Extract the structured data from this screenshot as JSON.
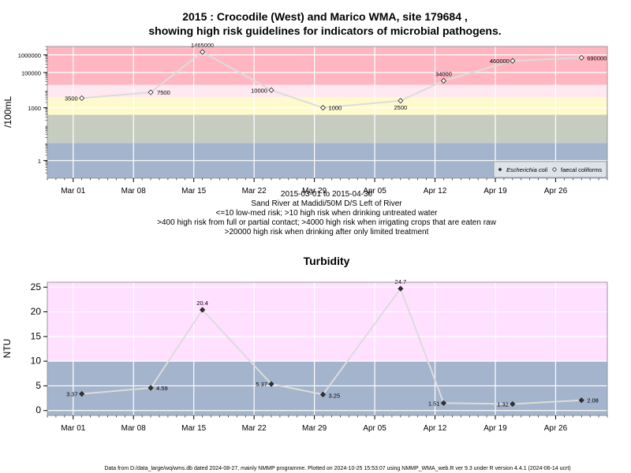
{
  "header": {
    "title_line1": "2015 : Crocodile (West) and Marico WMA, site 179684 ,",
    "title_line2": "showing high risk guidelines for indicators of microbial pathogens."
  },
  "microbial": {
    "ylabel": "/100mL",
    "y_ticks": [
      {
        "label": "1000000",
        "value": 1000000
      },
      {
        "label": "100000",
        "value": 100000
      },
      {
        "label": "1000",
        "value": 1000
      },
      {
        "label": "1",
        "value": 1
      }
    ],
    "x_ticks": [
      {
        "label": "Mar 01",
        "date": "2015-03-01"
      },
      {
        "label": "Mar 08",
        "date": "2015-03-08"
      },
      {
        "label": "Mar 15",
        "date": "2015-03-15"
      },
      {
        "label": "Mar 22",
        "date": "2015-03-22"
      },
      {
        "label": "Mar 29",
        "date": "2015-03-29"
      },
      {
        "label": "Apr 05",
        "date": "2015-04-05"
      },
      {
        "label": "Apr 12",
        "date": "2015-04-12"
      },
      {
        "label": "Apr 19",
        "date": "2015-04-19"
      },
      {
        "label": "Apr 26",
        "date": "2015-04-26"
      }
    ],
    "legend": {
      "ecoli": "Escherichia coli",
      "fc": "faecal coliforms"
    },
    "caption": [
      "2015-03-01 to 2015-04-30",
      "Sand River at Madidi/50M D/S Left of River",
      "<=10 low-med risk; >10 high risk when drinking untreated water",
      ">400 high risk from full or partial contact; >4000 high risk when irrigating crops that are eaten raw",
      ">20000 high risk when drinking after only limited treatment"
    ]
  },
  "turbidity": {
    "title": "Turbidity",
    "ylabel": "NTU",
    "y_ticks": [
      {
        "label": "0",
        "value": 0
      },
      {
        "label": "5",
        "value": 5
      },
      {
        "label": "10",
        "value": 10
      },
      {
        "label": "15",
        "value": 15
      },
      {
        "label": "20",
        "value": 20
      },
      {
        "label": "25",
        "value": 25
      }
    ],
    "x_ticks": [
      {
        "label": "Mar 01",
        "date": "2015-03-01"
      },
      {
        "label": "Mar 08",
        "date": "2015-03-08"
      },
      {
        "label": "Mar 15",
        "date": "2015-03-15"
      },
      {
        "label": "Mar 22",
        "date": "2015-03-22"
      },
      {
        "label": "Mar 29",
        "date": "2015-03-29"
      },
      {
        "label": "Apr 05",
        "date": "2015-04-05"
      },
      {
        "label": "Apr 12",
        "date": "2015-04-12"
      },
      {
        "label": "Apr 19",
        "date": "2015-04-19"
      },
      {
        "label": "Apr 26",
        "date": "2015-04-26"
      }
    ]
  },
  "footer": {
    "text": "Data from D:/data_large/wq/wms.db dated 2024-08-27, mainly NMMP programme. Plotted on 2024-10-25 15:53:07 using NMMP_WMA_web.R ver 9.3 under R version 4.4.1 (2024-06-14 ucrt)"
  },
  "colors": {
    "band_red": "#ffb6c1",
    "band_lightpink": "#ffe8f0",
    "band_pink": "#ffe0ff",
    "band_yellow": "#fffacd",
    "band_grey": "#c6cdc0",
    "band_blue": "#a4b4cc",
    "line": "#dcdcdc",
    "grid": "#ffffff"
  },
  "chart_data": [
    {
      "type": "scatter",
      "title": "2015 : Crocodile (West) and Marico WMA, site 179684 , showing high risk guidelines for indicators of microbial pathogens.",
      "ylabel": "/100mL",
      "y_scale": "log",
      "xlim": [
        "2015-02-26",
        "2015-05-02"
      ],
      "ylim": [
        0.1,
        3000000
      ],
      "legend_position": "bottom-right",
      "guidelines": [
        10,
        400,
        4000,
        20000
      ],
      "series": [
        {
          "name": "faecal coliforms",
          "points": [
            {
              "x": "2015-03-02",
              "y": 3500,
              "label": "3500"
            },
            {
              "x": "2015-03-10",
              "y": 7500,
              "label": "7500"
            },
            {
              "x": "2015-03-16",
              "y": 1465000,
              "label": "1465000"
            },
            {
              "x": "2015-03-24",
              "y": 10000,
              "label": "10000"
            },
            {
              "x": "2015-03-30",
              "y": 1000,
              "label": "1000"
            },
            {
              "x": "2015-04-08",
              "y": 2500,
              "label": "2500"
            },
            {
              "x": "2015-04-13",
              "y": 34000,
              "label": "34000"
            },
            {
              "x": "2015-04-21",
              "y": 460000,
              "label": "460000"
            },
            {
              "x": "2015-04-29",
              "y": 690000,
              "label": "690000"
            }
          ]
        }
      ]
    },
    {
      "type": "line",
      "title": "Turbidity",
      "ylabel": "NTU",
      "xlim": [
        "2015-02-26",
        "2015-05-02"
      ],
      "ylim": [
        -1,
        26
      ],
      "guidelines": [
        10
      ],
      "series": [
        {
          "points": [
            {
              "x": "2015-03-02",
              "y": 3.37,
              "label": "3.37"
            },
            {
              "x": "2015-03-10",
              "y": 4.59,
              "label": "4.59"
            },
            {
              "x": "2015-03-16",
              "y": 20.4,
              "label": "20.4"
            },
            {
              "x": "2015-03-24",
              "y": 5.37,
              "label": "5.37"
            },
            {
              "x": "2015-03-30",
              "y": 3.25,
              "label": "3.25"
            },
            {
              "x": "2015-04-08",
              "y": 24.7,
              "label": "24.7"
            },
            {
              "x": "2015-04-13",
              "y": 1.51,
              "label": "1.51"
            },
            {
              "x": "2015-04-21",
              "y": 1.32,
              "label": "1.32"
            },
            {
              "x": "2015-04-29",
              "y": 2.08,
              "label": "2.08"
            }
          ]
        }
      ]
    }
  ]
}
